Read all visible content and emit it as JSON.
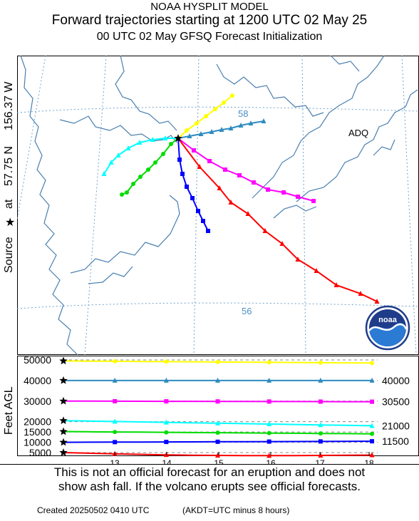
{
  "header": {
    "model": "NOAA HYSPLIT MODEL",
    "title": "Forward trajectories starting at 1200 UTC 02 May 25",
    "subtitle": "00 UTC 02 May     GFSQ  Forecast Initialization"
  },
  "side_label": {
    "source": "Source",
    "at": "at",
    "lat": "57.75 N",
    "lon": "156.37 W"
  },
  "map": {
    "place_label": "ADQ",
    "lat_labels": [
      "58",
      "56"
    ],
    "logo_text": "noaa",
    "colors": {
      "coast": "#4a7fb0",
      "grid": "#6fa3cc",
      "source": "#000000"
    }
  },
  "profile": {
    "ylabel": "Feet AGL",
    "left_levels": [
      "50000",
      "40000",
      "30000",
      "20000",
      "15000",
      "10000",
      "5000"
    ],
    "right_levels": [
      "40000",
      "30500",
      "21000",
      "11500"
    ],
    "x_ticks": [
      "13",
      "14",
      "15",
      "16",
      "17",
      "18"
    ]
  },
  "trajectories": [
    {
      "color": "#ffff00",
      "marker": "circle",
      "start_height_ft": 49500,
      "end_height_ft": 48500
    },
    {
      "color": "#2e8bc0",
      "marker": "triangle",
      "start_height_ft": 40000,
      "end_height_ft": 40000
    },
    {
      "color": "#ff00ff",
      "marker": "square",
      "start_height_ft": 30000,
      "end_height_ft": 29700
    },
    {
      "color": "#00ffff",
      "marker": "triangle",
      "start_height_ft": 20500,
      "end_height_ft": 18000
    },
    {
      "color": "#00dd00",
      "marker": "circle",
      "start_height_ft": 15200,
      "end_height_ft": 14100
    },
    {
      "color": "#0000ff",
      "marker": "square",
      "start_height_ft": 10000,
      "end_height_ft": 10500
    },
    {
      "color": "#ff0000",
      "marker": "triangle",
      "start_height_ft": 5000,
      "end_height_ft": 3800
    }
  ],
  "notice": {
    "line1": "This is not an official forecast for an eruption and does not",
    "line2": "show ash fall. If the volcano erupts see official forecasts."
  },
  "footer": {
    "created": "Created 20250502 0410 UTC",
    "akdt": "(AKDT=UTC minus 8 hours)"
  }
}
